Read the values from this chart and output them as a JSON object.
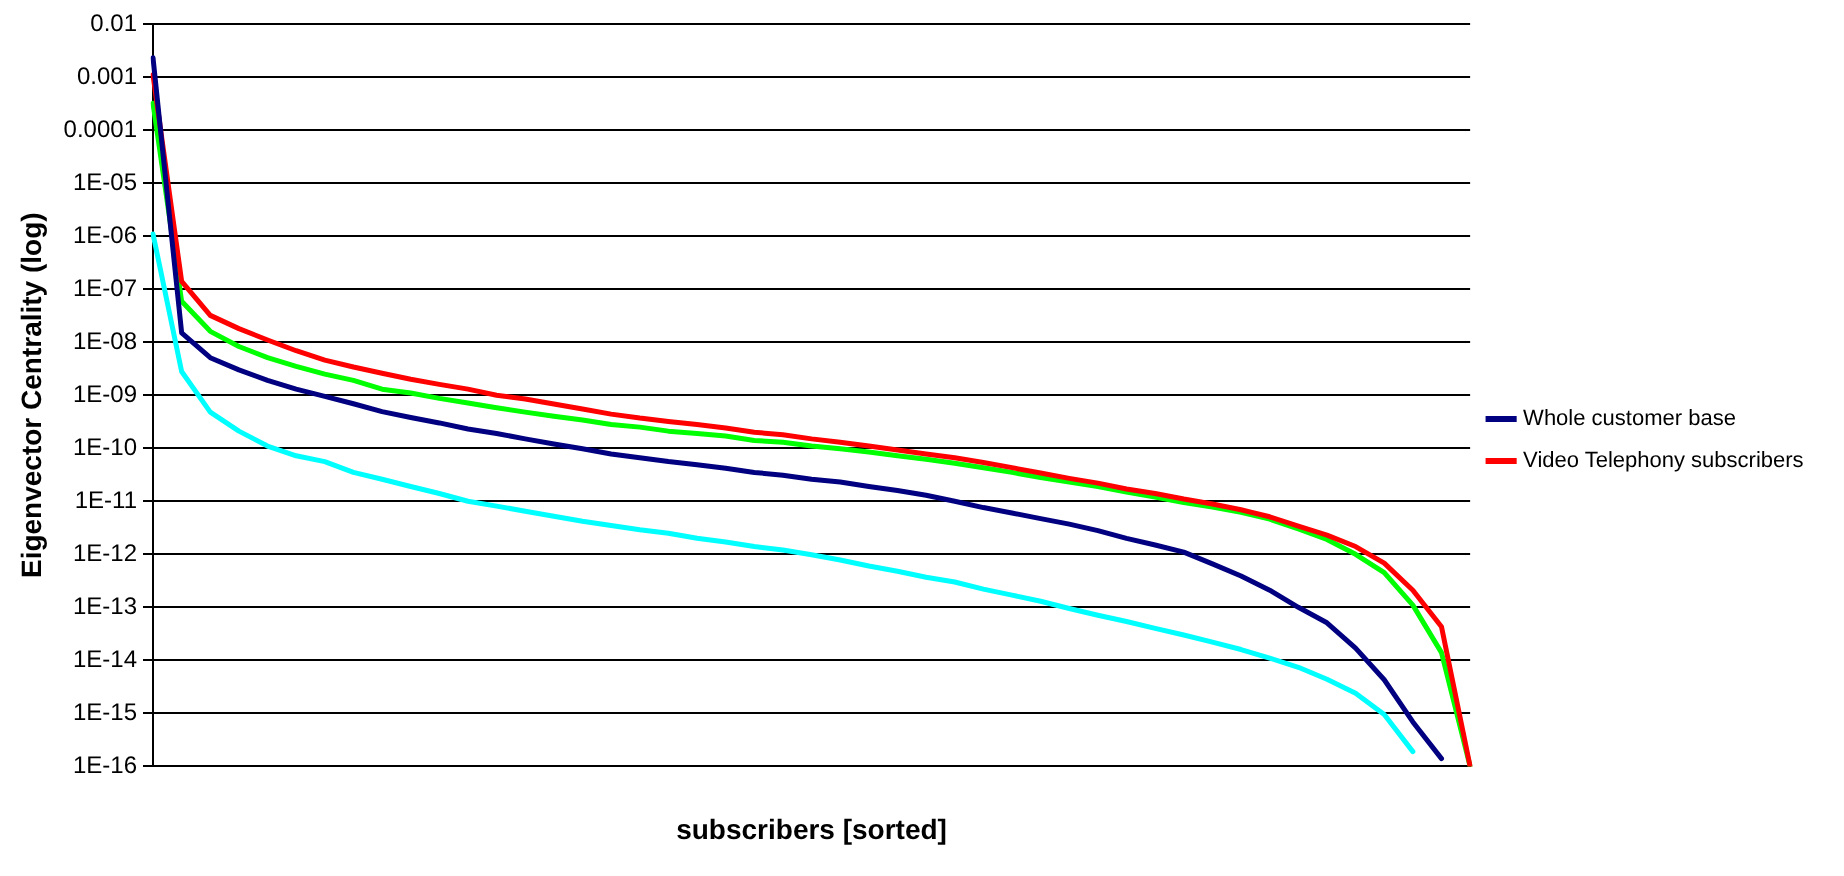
{
  "chart_data": {
    "type": "line",
    "xlabel": "subscribers [sorted]",
    "ylabel": "Eigenvector Centrality (log)",
    "categories": [
      null,
      null,
      null,
      null,
      null,
      null,
      null,
      null,
      null,
      null,
      null,
      null,
      null,
      null,
      null,
      null,
      null,
      null,
      null,
      null,
      null,
      null,
      null,
      null,
      null,
      null,
      null,
      null,
      null,
      null,
      null,
      null,
      null,
      null,
      null,
      null,
      null,
      null,
      null,
      null,
      null,
      null,
      null,
      null,
      null,
      null,
      null
    ],
    "series": [
      {
        "name": "Whole customer base",
        "color": "#000080",
        "values": [
          0.0023,
          1.5e-08,
          5.1e-09,
          3e-09,
          1.9e-09,
          1.3e-09,
          9.5e-10,
          6.9e-10,
          4.9e-10,
          3.8e-10,
          3e-10,
          2.3e-10,
          1.9e-10,
          1.5e-10,
          1.2e-10,
          9.8e-11,
          7.8e-11,
          6.6e-11,
          5.6e-11,
          4.9e-11,
          4.2e-11,
          3.5e-11,
          3.1e-11,
          2.6e-11,
          2.3e-11,
          1.9e-11,
          1.6e-11,
          1.3e-11,
          1e-11,
          7.6e-12,
          6e-12,
          4.7e-12,
          3.7e-12,
          2.8e-12,
          2e-12,
          1.5e-12,
          1.1e-12,
          6.6e-13,
          3.9e-13,
          2.1e-13,
          1e-13,
          5.1e-14,
          1.7e-14,
          4.3e-15,
          6.9e-16,
          1.4e-16,
          null
        ]
      },
      {
        "name": "Video Telephony subscribers",
        "color": "#ff0000",
        "values": [
          0.0011,
          1.4e-07,
          3.2e-08,
          1.8e-08,
          1.1e-08,
          6.9e-09,
          4.6e-09,
          3.4e-09,
          2.6e-09,
          2e-09,
          1.6e-09,
          1.3e-09,
          1e-09,
          8.5e-10,
          6.8e-10,
          5.5e-10,
          4.4e-10,
          3.7e-10,
          3.2e-10,
          2.8e-10,
          2.4e-10,
          2e-10,
          1.8e-10,
          1.5e-10,
          1.3e-10,
          1.1e-10,
          9.3e-11,
          7.8e-11,
          6.6e-11,
          5.4e-11,
          4.3e-11,
          3.4e-11,
          2.7e-11,
          2.2e-11,
          1.7e-11,
          1.4e-11,
          1.1e-11,
          8.9e-12,
          6.9e-12,
          5.1e-12,
          3.4e-12,
          2.3e-12,
          1.4e-12,
          6.8e-13,
          2.1e-13,
          4.3e-14,
          1e-16
        ]
      },
      {
        "color": "#00ff00",
        "values": [
          0.00032,
          5.9e-08,
          1.6e-08,
          8.3e-09,
          5.1e-09,
          3.5e-09,
          2.5e-09,
          1.9e-09,
          1.3e-09,
          1.1e-09,
          8.7e-10,
          7.1e-10,
          5.8e-10,
          4.8e-10,
          4e-10,
          3.4e-10,
          2.8e-10,
          2.5e-10,
          2.1e-10,
          1.9e-10,
          1.7e-10,
          1.4e-10,
          1.3e-10,
          1.1e-10,
          9.8e-11,
          8.5e-11,
          7.2e-11,
          6.2e-11,
          5.2e-11,
          4.3e-11,
          3.5e-11,
          2.8e-11,
          2.3e-11,
          1.9e-11,
          1.5e-11,
          1.2e-11,
          9.5e-12,
          7.8e-12,
          6.2e-12,
          4.6e-12,
          3e-12,
          1.9e-12,
          1e-12,
          4.5e-13,
          1.1e-13,
          1.4e-14,
          1e-16
        ]
      },
      {
        "color": "#00ffff",
        "values": [
          1.1e-06,
          2.8e-09,
          4.8e-10,
          2.1e-10,
          1.1e-10,
          7.2e-11,
          5.6e-11,
          3.5e-11,
          2.6e-11,
          1.9e-11,
          1.4e-11,
          1e-11,
          8.1e-12,
          6.5e-12,
          5.2e-12,
          4.2e-12,
          3.5e-12,
          2.9e-12,
          2.5e-12,
          2e-12,
          1.7e-12,
          1.4e-12,
          1.2e-12,
          9.8e-13,
          7.8e-13,
          6e-13,
          4.8e-13,
          3.7e-13,
          3e-13,
          2.2e-13,
          1.7e-13,
          1.3e-13,
          9.5e-14,
          7.1e-14,
          5.4e-14,
          4e-14,
          3e-14,
          2.2e-14,
          1.6e-14,
          1.1e-14,
          7.4e-15,
          4.4e-15,
          2.4e-15,
          9.5e-16,
          1.9e-16,
          null,
          null
        ]
      }
    ],
    "log": "y",
    "ylim": [
      1e-16,
      0.01
    ],
    "yticks": [
      0.01,
      0.001,
      0.0001,
      {
        "value": 1e-05,
        "label": "1E-05"
      },
      {
        "value": 1e-06,
        "label": "1E-06"
      },
      {
        "value": 1e-07,
        "label": "1E-07"
      },
      {
        "value": 1e-08,
        "label": "1E-08"
      },
      {
        "value": 1e-09,
        "label": "1E-09"
      },
      {
        "value": 1e-10,
        "label": "1E-10"
      },
      {
        "value": 1e-11,
        "label": "1E-11"
      },
      {
        "value": 1e-12,
        "label": "1E-12"
      },
      {
        "value": 1e-13,
        "label": "1E-13"
      },
      {
        "value": 1e-14,
        "label": "1E-14"
      },
      {
        "value": 1e-15,
        "label": "1E-15"
      },
      {
        "value": 1e-16,
        "label": "1E-16"
      }
    ],
    "grid": "y",
    "legend": "right",
    "tick_labels": "y",
    "marker": "none",
    "line_style": "solid"
  }
}
